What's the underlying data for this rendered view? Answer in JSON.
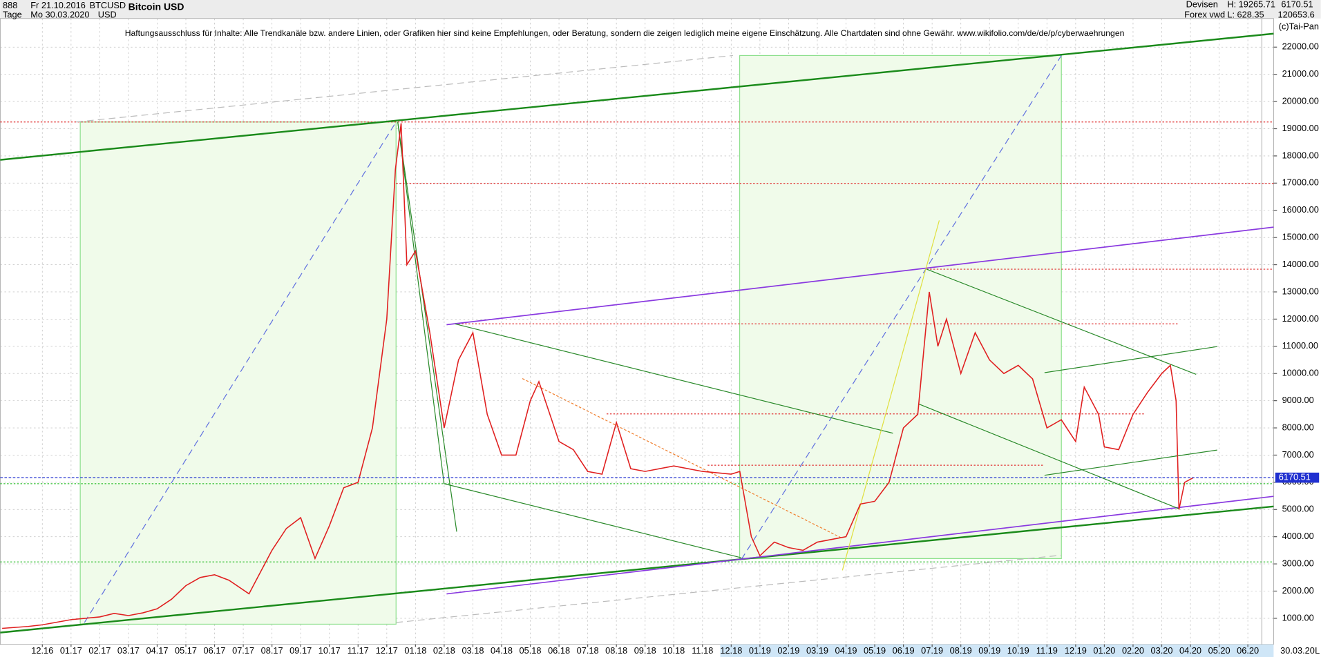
{
  "toolbar": {
    "code": "888",
    "from": "Fr 21.10.2016",
    "period": "Tage",
    "to": "Mo 30.03.2020",
    "symbol": "BTCUSD",
    "currency": "USD",
    "market": "Devisen",
    "source": "Forex vwd",
    "high": "H: 19265.71",
    "low": "L: 628.35",
    "volume": "120653.6",
    "copyright": "(c)Tai-Pan",
    "date": "30.03.20",
    "scale": "L"
  },
  "chart_data": {
    "type": "line",
    "title": "Bitcoin USD",
    "annotation": "Haftungsausschluss für Inhalte: Alle Trendkanäle bzw. andere Linien, oder Grafiken hier sind keine Empfehlungen, oder Beratung, sondern die zeigen lediglich meine eigene Einschätzung. Alle Chartdaten sind ohne Gewähr.  www.wikifolio.com/de/de/p/cyberwaehrungen",
    "color": "#e02020",
    "last_color": "#2030d0",
    "grid": true,
    "x": [
      -1.4,
      -0.5,
      0,
      1,
      1.5,
      2,
      2.5,
      3,
      3.5,
      4,
      4.5,
      5,
      5.5,
      6,
      6.5,
      7.2,
      7.6,
      8,
      8.5,
      9,
      9.5,
      10,
      10.5,
      11,
      11.5,
      12,
      12.3,
      12.5,
      12.7,
      13,
      13.5,
      14,
      14.5,
      15,
      15.5,
      16,
      16.5,
      17,
      17.3,
      18,
      18.5,
      19,
      19.5,
      20,
      20.5,
      21,
      22,
      23,
      24,
      24.3,
      24.7,
      25,
      25.5,
      26,
      26.5,
      27,
      28,
      28.5,
      29,
      29.5,
      30,
      30.5,
      30.9,
      31.2,
      31.5,
      32,
      32.5,
      33,
      33.5,
      34,
      34.5,
      35,
      35.5,
      36,
      36.3,
      36.8,
      37,
      37.5,
      38,
      38.5,
      39,
      39.3,
      39.5,
      39.6,
      39.8,
      40.1
    ],
    "values": [
      630,
      700,
      760,
      950,
      1000,
      1050,
      1180,
      1100,
      1200,
      1350,
      1700,
      2200,
      2500,
      2600,
      2400,
      1900,
      2700,
      3500,
      4300,
      4700,
      3200,
      4400,
      5800,
      6000,
      8000,
      12000,
      17500,
      19200,
      14000,
      14500,
      11500,
      8000,
      10500,
      11500,
      8500,
      7000,
      7000,
      9000,
      9700,
      7500,
      7200,
      6400,
      6300,
      8200,
      6500,
      6400,
      6600,
      6400,
      6300,
      6400,
      4000,
      3300,
      3800,
      3600,
      3500,
      3800,
      4000,
      5200,
      5300,
      6000,
      8000,
      8500,
      13000,
      11000,
      12000,
      10000,
      11500,
      10500,
      10000,
      10300,
      9800,
      8000,
      8300,
      7500,
      9500,
      8500,
      7300,
      7200,
      8500,
      9300,
      10000,
      10300,
      9000,
      5000,
      6000,
      6170.51
    ],
    "xlim": [
      -1.467,
      42.897
    ],
    "xticks": [
      {
        "value": 0,
        "label": "12.16"
      },
      {
        "value": 1,
        "label": "01.17"
      },
      {
        "value": 2,
        "label": "02.17"
      },
      {
        "value": 3,
        "label": "03.17"
      },
      {
        "value": 4,
        "label": "04.17"
      },
      {
        "value": 5,
        "label": "05.17"
      },
      {
        "value": 6,
        "label": "06.17"
      },
      {
        "value": 7,
        "label": "07.17"
      },
      {
        "value": 8,
        "label": "08.17"
      },
      {
        "value": 9,
        "label": "09.17"
      },
      {
        "value": 10,
        "label": "10.17"
      },
      {
        "value": 11,
        "label": "11.17"
      },
      {
        "value": 12,
        "label": "12.17"
      },
      {
        "value": 13,
        "label": "01.18"
      },
      {
        "value": 14,
        "label": "02.18"
      },
      {
        "value": 15,
        "label": "03.18"
      },
      {
        "value": 16,
        "label": "04.18"
      },
      {
        "value": 17,
        "label": "05.18"
      },
      {
        "value": 18,
        "label": "06.18"
      },
      {
        "value": 19,
        "label": "07.18"
      },
      {
        "value": 20,
        "label": "08.18"
      },
      {
        "value": 21,
        "label": "09.18"
      },
      {
        "value": 22,
        "label": "10.18"
      },
      {
        "value": 23,
        "label": "11.18"
      },
      {
        "value": 24,
        "label": "12.18"
      },
      {
        "value": 25,
        "label": "01.19"
      },
      {
        "value": 26,
        "label": "02.19"
      },
      {
        "value": 27,
        "label": "03.19"
      },
      {
        "value": 28,
        "label": "04.19"
      },
      {
        "value": 29,
        "label": "05.19"
      },
      {
        "value": 30,
        "label": "06.19"
      },
      {
        "value": 31,
        "label": "07.19"
      },
      {
        "value": 32,
        "label": "08.19"
      },
      {
        "value": 33,
        "label": "09.19"
      },
      {
        "value": 34,
        "label": "10.19"
      },
      {
        "value": 35,
        "label": "11.19"
      },
      {
        "value": 36,
        "label": "12.19"
      },
      {
        "value": 37,
        "label": "01.20"
      },
      {
        "value": 38,
        "label": "02.20"
      },
      {
        "value": 39,
        "label": "03.20"
      },
      {
        "value": 40,
        "label": "04.20"
      },
      {
        "value": 41,
        "label": "05.20"
      },
      {
        "value": 42,
        "label": "06.20"
      }
    ],
    "ylim": [
      41,
      23052
    ],
    "yticks": [
      {
        "value": 1000,
        "label": "1000.00"
      },
      {
        "value": 2000,
        "label": "2000.00"
      },
      {
        "value": 3000,
        "label": "3000.00"
      },
      {
        "value": 4000,
        "label": "4000.00"
      },
      {
        "value": 5000,
        "label": "5000.00"
      },
      {
        "value": 6000,
        "label": "6000.00"
      },
      {
        "value": 7000,
        "label": "7000.00"
      },
      {
        "value": 8000,
        "label": "8000.00"
      },
      {
        "value": 9000,
        "label": "9000.00"
      },
      {
        "value": 10000,
        "label": "10000.00"
      },
      {
        "value": 11000,
        "label": "11000.00"
      },
      {
        "value": 12000,
        "label": "12000.00"
      },
      {
        "value": 13000,
        "label": "13000.00"
      },
      {
        "value": 14000,
        "label": "14000.00"
      },
      {
        "value": 15000,
        "label": "15000.00"
      },
      {
        "value": 16000,
        "label": "16000.00"
      },
      {
        "value": 17000,
        "label": "17000.00"
      },
      {
        "value": 18000,
        "label": "18000.00"
      },
      {
        "value": 19000,
        "label": "19000.00"
      },
      {
        "value": 20000,
        "label": "20000.00"
      },
      {
        "value": 21000,
        "label": "21000.00"
      },
      {
        "value": 22000,
        "label": "22000.00"
      }
    ]
  }
}
